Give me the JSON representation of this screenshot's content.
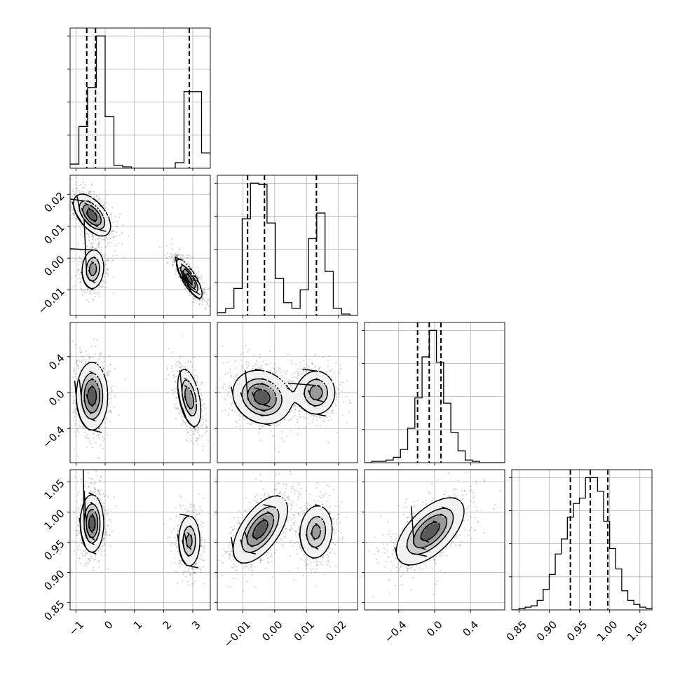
{
  "chart_data": {
    "type": "corner",
    "params": [
      {
        "range": [
          -1.2,
          3.6
        ],
        "ticks": [
          -1,
          0,
          1,
          2,
          3
        ],
        "tick_labels": [
          "−1",
          "0",
          "1",
          "2",
          "3"
        ],
        "quantiles": [
          -0.63,
          -0.33,
          2.88
        ],
        "hist": {
          "bins": [
            -1.2,
            -0.9,
            -0.6,
            -0.3,
            0.0,
            0.3,
            0.6,
            0.9,
            1.2,
            1.5,
            1.8,
            2.1,
            2.4,
            2.7,
            3.0,
            3.3,
            3.6
          ],
          "counts": [
            0.03,
            0.3,
            0.58,
            0.95,
            0.37,
            0.02,
            0.01,
            0,
            0,
            0,
            0,
            0,
            0.04,
            0.55,
            0.55,
            0.11
          ]
        }
      },
      {
        "range": [
          -0.018,
          0.026
        ],
        "ticks": [
          -0.01,
          0.0,
          0.01,
          0.02
        ],
        "tick_labels": [
          "−0.01",
          "0.00",
          "0.01",
          "0.02"
        ],
        "quantiles": [
          -0.0085,
          -0.0032,
          0.0131
        ],
        "hist": {
          "bins": [
            -0.018,
            -0.0154,
            -0.0128,
            -0.0102,
            -0.0076,
            -0.005,
            -0.0024,
            0.0002,
            0.0028,
            0.0054,
            0.008,
            0.0106,
            0.0132,
            0.0158,
            0.0184,
            0.021,
            0.0236,
            0.026
          ],
          "counts": [
            0.02,
            0.05,
            0.19,
            0.68,
            0.93,
            0.92,
            0.65,
            0.26,
            0.09,
            0.05,
            0.18,
            0.54,
            0.72,
            0.31,
            0.05,
            0.01,
            0
          ]
        }
      },
      {
        "range": [
          -0.78,
          0.78
        ],
        "ticks": [
          -0.4,
          0.0,
          0.4
        ],
        "tick_labels": [
          "−0.4",
          "0.0",
          "0.4"
        ],
        "quantiles": [
          -0.19,
          -0.06,
          0.07
        ],
        "hist": {
          "bins": [
            -0.78,
            -0.7,
            -0.62,
            -0.54,
            -0.46,
            -0.38,
            -0.3,
            -0.22,
            -0.14,
            -0.06,
            0.02,
            0.1,
            0.18,
            0.26,
            0.34,
            0.42,
            0.5,
            0.58,
            0.66,
            0.74,
            0.78
          ],
          "counts": [
            0,
            0.01,
            0.01,
            0.02,
            0.04,
            0.1,
            0.26,
            0.49,
            0.8,
            1.0,
            0.76,
            0.45,
            0.23,
            0.09,
            0.02,
            0.01,
            0,
            0,
            0,
            0
          ]
        }
      },
      {
        "range": [
          0.838,
          1.07
        ],
        "ticks": [
          0.85,
          0.9,
          0.95,
          1.0,
          1.05
        ],
        "tick_labels": [
          "0.85",
          "0.90",
          "0.95",
          "1.00",
          "1.05"
        ],
        "quantiles": [
          0.935,
          0.968,
          0.997
        ],
        "hist": {
          "bins": [
            0.838,
            0.85,
            0.86,
            0.87,
            0.88,
            0.89,
            0.9,
            0.91,
            0.92,
            0.93,
            0.94,
            0.95,
            0.96,
            0.97,
            0.98,
            0.99,
            1.0,
            1.01,
            1.02,
            1.03,
            1.04,
            1.05,
            1.06,
            1.07
          ],
          "counts": [
            0.0,
            0.01,
            0.02,
            0.03,
            0.07,
            0.15,
            0.26,
            0.41,
            0.52,
            0.68,
            0.78,
            0.82,
            0.97,
            0.97,
            0.87,
            0.65,
            0.45,
            0.3,
            0.14,
            0.07,
            0.04,
            0.02,
            0.01
          ]
        }
      }
    ],
    "blobs": {
      "1_0": [
        {
          "x": -0.45,
          "y": 0.0135,
          "sx": 0.32,
          "sy": 0.0033,
          "rho": -0.55,
          "peak": 1.0
        },
        {
          "x": -0.42,
          "y": -0.0035,
          "sx": 0.2,
          "sy": 0.0033,
          "rho": 0.1,
          "peak": 0.75
        },
        {
          "x": 2.88,
          "y": -0.0065,
          "sx": 0.22,
          "sy": 0.0031,
          "rho": -0.8,
          "peak": 1.0
        }
      ],
      "2_0": [
        {
          "x": -0.45,
          "y": -0.04,
          "sx": 0.27,
          "sy": 0.19,
          "rho": 0.0,
          "peak": 1.0
        },
        {
          "x": 2.88,
          "y": -0.06,
          "sx": 0.21,
          "sy": 0.17,
          "rho": -0.45,
          "peak": 0.8
        }
      ],
      "2_1": [
        {
          "x": -0.004,
          "y": -0.05,
          "sx": 0.0046,
          "sy": 0.15,
          "rho": -0.15,
          "peak": 1.0
        },
        {
          "x": 0.013,
          "y": 0.0,
          "sx": 0.0032,
          "sy": 0.13,
          "rho": 0.0,
          "peak": 0.75
        }
      ],
      "3_0": [
        {
          "x": -0.45,
          "y": 0.981,
          "sx": 0.2,
          "sy": 0.024,
          "rho": 0.0,
          "peak": 1.0
        },
        {
          "x": 2.88,
          "y": 0.952,
          "sx": 0.2,
          "sy": 0.023,
          "rho": 0.0,
          "peak": 0.7
        }
      ],
      "3_1": [
        {
          "x": -0.0045,
          "y": 0.971,
          "sx": 0.0043,
          "sy": 0.028,
          "rho": 0.6,
          "peak": 1.0
        },
        {
          "x": 0.013,
          "y": 0.967,
          "sx": 0.0028,
          "sy": 0.024,
          "rho": 0.1,
          "peak": 0.7
        }
      ],
      "3_2": [
        {
          "x": -0.05,
          "y": 0.968,
          "sx": 0.19,
          "sy": 0.028,
          "rho": 0.6,
          "peak": 1.0
        }
      ]
    },
    "contour_levels": [
      0.14,
      0.4,
      0.62,
      0.86
    ],
    "grid": true,
    "colors": {
      "line": "#000000",
      "scatter": "#000000",
      "grid": "#b0b0b0",
      "fill_max": "#2b2b2b"
    }
  }
}
